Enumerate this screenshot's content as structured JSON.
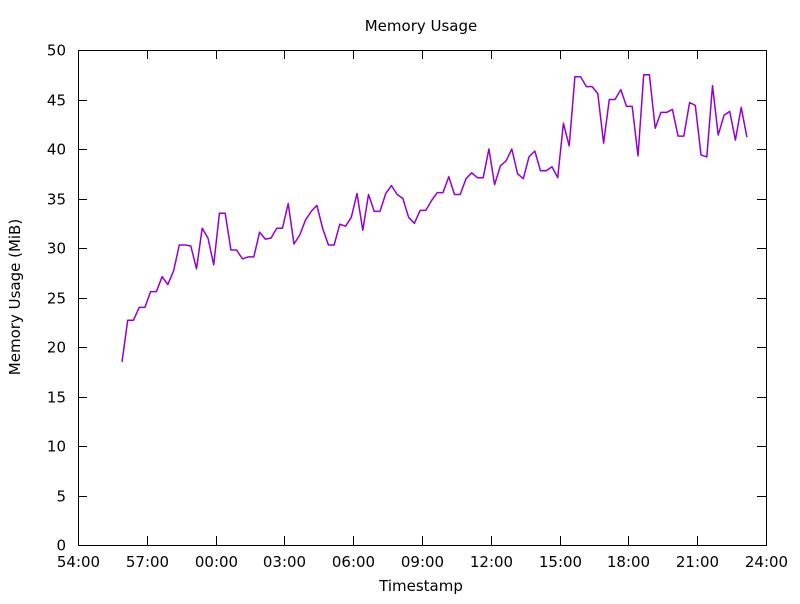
{
  "chart_data": {
    "type": "line",
    "title": "Memory Usage",
    "xlabel": "Timestamp",
    "ylabel": "Memory Usage (MiB)",
    "xlim": [
      "54:00",
      "24:00"
    ],
    "ylim": [
      0,
      50
    ],
    "xticks": [
      "54:00",
      "57:00",
      "00:00",
      "03:00",
      "06:00",
      "09:00",
      "12:00",
      "15:00",
      "18:00",
      "21:00",
      "24:00"
    ],
    "yticks": [
      0,
      5,
      10,
      15,
      20,
      25,
      30,
      35,
      40,
      45,
      50
    ],
    "grid": false,
    "legend": "none",
    "series": [
      {
        "color": "#9400d3",
        "x": [
          "55:55",
          "56:10",
          "56:25",
          "56:40",
          "56:55",
          "57:10",
          "57:25",
          "57:40",
          "57:55",
          "58:10",
          "58:25",
          "58:40",
          "58:55",
          "59:10",
          "59:25",
          "59:40",
          "59:55",
          "00:10",
          "00:25",
          "00:40",
          "00:55",
          "01:10",
          "01:25",
          "01:40",
          "01:55",
          "02:10",
          "02:25",
          "02:40",
          "02:55",
          "03:10",
          "03:25",
          "03:40",
          "03:55",
          "04:10",
          "04:25",
          "04:40",
          "04:55",
          "05:10",
          "05:25",
          "05:40",
          "05:55",
          "06:10",
          "06:25",
          "06:40",
          "06:55",
          "07:10",
          "07:25",
          "07:40",
          "07:55",
          "08:10",
          "08:25",
          "08:40",
          "08:55",
          "09:10",
          "09:25",
          "09:40",
          "09:55",
          "10:10",
          "10:25",
          "10:40",
          "10:55",
          "11:10",
          "11:25",
          "11:40",
          "11:55",
          "12:10",
          "12:25",
          "12:40",
          "12:55",
          "13:10",
          "13:25",
          "13:40",
          "13:55",
          "14:10",
          "14:25",
          "14:40",
          "14:55",
          "15:10",
          "15:25",
          "15:40",
          "15:55",
          "16:10",
          "16:25",
          "16:40",
          "16:55",
          "17:10",
          "17:25",
          "17:40",
          "17:55",
          "18:10",
          "18:25",
          "18:40",
          "18:55",
          "19:10",
          "19:25",
          "19:40",
          "19:55",
          "20:10",
          "20:25",
          "20:40",
          "20:55",
          "21:10",
          "21:25",
          "21:40",
          "21:55",
          "22:10",
          "22:25",
          "22:40",
          "22:55",
          "23:10"
        ],
        "y": [
          18.5,
          22.7,
          22.7,
          24.0,
          24.0,
          25.6,
          25.6,
          27.1,
          26.3,
          27.7,
          30.3,
          30.3,
          30.2,
          27.9,
          32.0,
          31.0,
          28.3,
          33.5,
          33.5,
          29.8,
          29.8,
          28.9,
          29.1,
          29.1,
          31.6,
          30.9,
          31.0,
          32.0,
          32.0,
          34.5,
          30.4,
          31.3,
          32.8,
          33.7,
          34.3,
          32.0,
          30.3,
          30.3,
          32.4,
          32.2,
          33.1,
          35.5,
          31.8,
          35.4,
          33.7,
          33.7,
          35.5,
          36.3,
          35.4,
          35.0,
          33.1,
          32.5,
          33.8,
          33.8,
          34.8,
          35.6,
          35.6,
          37.2,
          35.4,
          35.4,
          37.0,
          37.6,
          37.1,
          37.1,
          40.0,
          36.4,
          38.3,
          38.8,
          40.0,
          37.5,
          37.0,
          39.2,
          39.8,
          37.8,
          37.8,
          38.2,
          37.1,
          42.6,
          40.3,
          47.3,
          47.3,
          46.3,
          46.3,
          45.6,
          40.6,
          45.0,
          45.0,
          46.0,
          44.3,
          44.3,
          39.3,
          47.5,
          47.5,
          42.1,
          43.7,
          43.7,
          44.0,
          41.3,
          41.3,
          44.7,
          44.4,
          39.4,
          39.2,
          46.4,
          41.4,
          43.4,
          43.8,
          40.9,
          44.2,
          41.2
        ]
      }
    ]
  }
}
